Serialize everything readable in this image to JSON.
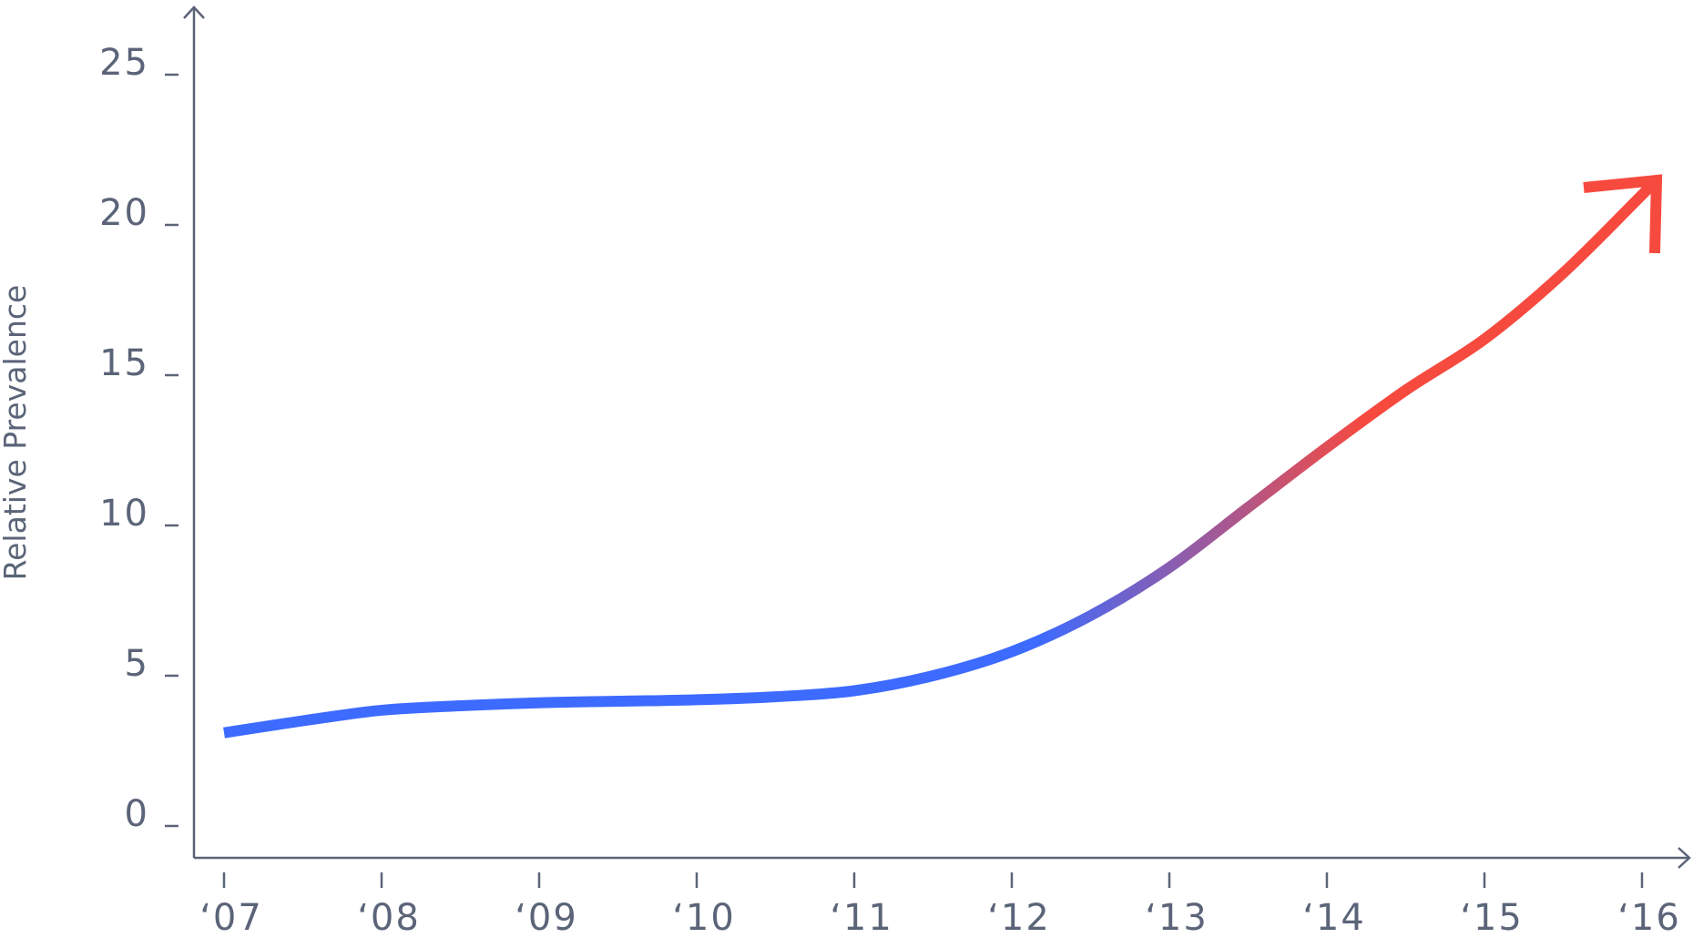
{
  "chart_data": {
    "type": "line",
    "xlabel": "",
    "ylabel": "Relative Prevalence",
    "x_ticks": [
      "‘07",
      "‘08",
      "‘09",
      "‘10",
      "‘11",
      "‘12",
      "‘13",
      "‘14",
      "‘15",
      "‘16"
    ],
    "y_ticks": [
      "0",
      "5",
      "10",
      "15",
      "20",
      "25"
    ],
    "xlim": [
      2007,
      2016.4
    ],
    "ylim": [
      -0.2,
      27.5
    ],
    "grid": false,
    "legend": "none",
    "series": [
      {
        "x": [
          2007.0,
          2007.5,
          2008.0,
          2008.5,
          2009.0,
          2009.5,
          2010.0,
          2010.5,
          2011.0,
          2011.5,
          2012.0,
          2012.5,
          2013.0,
          2013.5,
          2014.0,
          2014.5,
          2015.0,
          2015.5,
          2016.0
        ],
        "values": [
          3.1,
          3.5,
          3.85,
          4.0,
          4.1,
          4.15,
          4.2,
          4.3,
          4.5,
          5.0,
          5.8,
          7.0,
          8.6,
          10.6,
          12.6,
          14.5,
          16.2,
          18.4,
          21.0
        ],
        "color_start": "#3d6bff",
        "color_end": "#f74a3f",
        "arrow_end": true
      }
    ],
    "axis_color": "#5b6478"
  }
}
